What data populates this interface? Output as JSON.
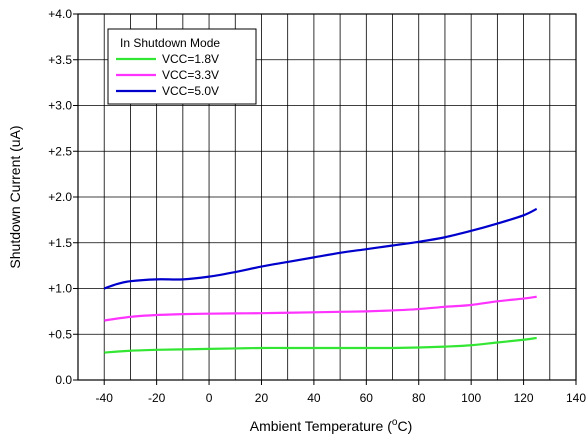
{
  "chart_data": {
    "type": "line",
    "title": "",
    "xlabel": "Ambient Temperature (°C)",
    "xlabel_parts": {
      "prefix": "Ambient Temperature (",
      "superscript": "o",
      "suffix": "C)"
    },
    "ylabel": "Shutdown Current (uA)",
    "xlim": [
      -50,
      140
    ],
    "ylim": [
      0.0,
      4.0
    ],
    "xticks": [
      -40,
      -20,
      0,
      20,
      40,
      60,
      80,
      100,
      120,
      140
    ],
    "xtick_labels": [
      "-40",
      "-20",
      "0",
      "20",
      "40",
      "60",
      "80",
      "100",
      "120",
      "140"
    ],
    "yticks": [
      0.0,
      0.5,
      1.0,
      1.5,
      2.0,
      2.5,
      3.0,
      3.5,
      4.0
    ],
    "ytick_labels": [
      "0.0",
      "+0.5",
      "+1.0",
      "+1.5",
      "+2.0",
      "+2.5",
      "+3.0",
      "+3.5",
      "+4.0"
    ],
    "x_gridlines": [
      -40,
      -30,
      -20,
      -10,
      0,
      10,
      20,
      30,
      40,
      50,
      60,
      70,
      80,
      90,
      100,
      110,
      120,
      130
    ],
    "y_gridlines": [
      0.5,
      1.0,
      1.5,
      2.0,
      2.5,
      3.0,
      3.5
    ],
    "grid": true,
    "legend": {
      "title": "In Shutdown Mode",
      "placement": "top-left"
    },
    "series": [
      {
        "name": "VCC=1.8V",
        "color": "#33e633",
        "x": [
          -40,
          -30,
          -20,
          -10,
          0,
          10,
          20,
          30,
          40,
          50,
          60,
          70,
          80,
          90,
          100,
          110,
          120,
          125
        ],
        "y": [
          0.3,
          0.32,
          0.33,
          0.335,
          0.34,
          0.345,
          0.35,
          0.35,
          0.35,
          0.35,
          0.35,
          0.35,
          0.355,
          0.365,
          0.38,
          0.41,
          0.44,
          0.46
        ]
      },
      {
        "name": "VCC=3.3V",
        "color": "#ff33ff",
        "x": [
          -40,
          -30,
          -20,
          -10,
          0,
          10,
          20,
          30,
          40,
          50,
          60,
          70,
          80,
          90,
          100,
          110,
          120,
          125
        ],
        "y": [
          0.65,
          0.69,
          0.71,
          0.72,
          0.725,
          0.728,
          0.73,
          0.735,
          0.74,
          0.745,
          0.75,
          0.76,
          0.775,
          0.8,
          0.82,
          0.86,
          0.89,
          0.91
        ]
      },
      {
        "name": "VCC=5.0V",
        "color": "#0000cc",
        "x": [
          -40,
          -35,
          -30,
          -20,
          -10,
          0,
          10,
          20,
          30,
          40,
          50,
          60,
          70,
          80,
          90,
          100,
          110,
          120,
          125
        ],
        "y": [
          1.0,
          1.05,
          1.08,
          1.1,
          1.1,
          1.13,
          1.18,
          1.24,
          1.29,
          1.34,
          1.39,
          1.43,
          1.47,
          1.51,
          1.56,
          1.63,
          1.71,
          1.8,
          1.87
        ]
      }
    ]
  }
}
